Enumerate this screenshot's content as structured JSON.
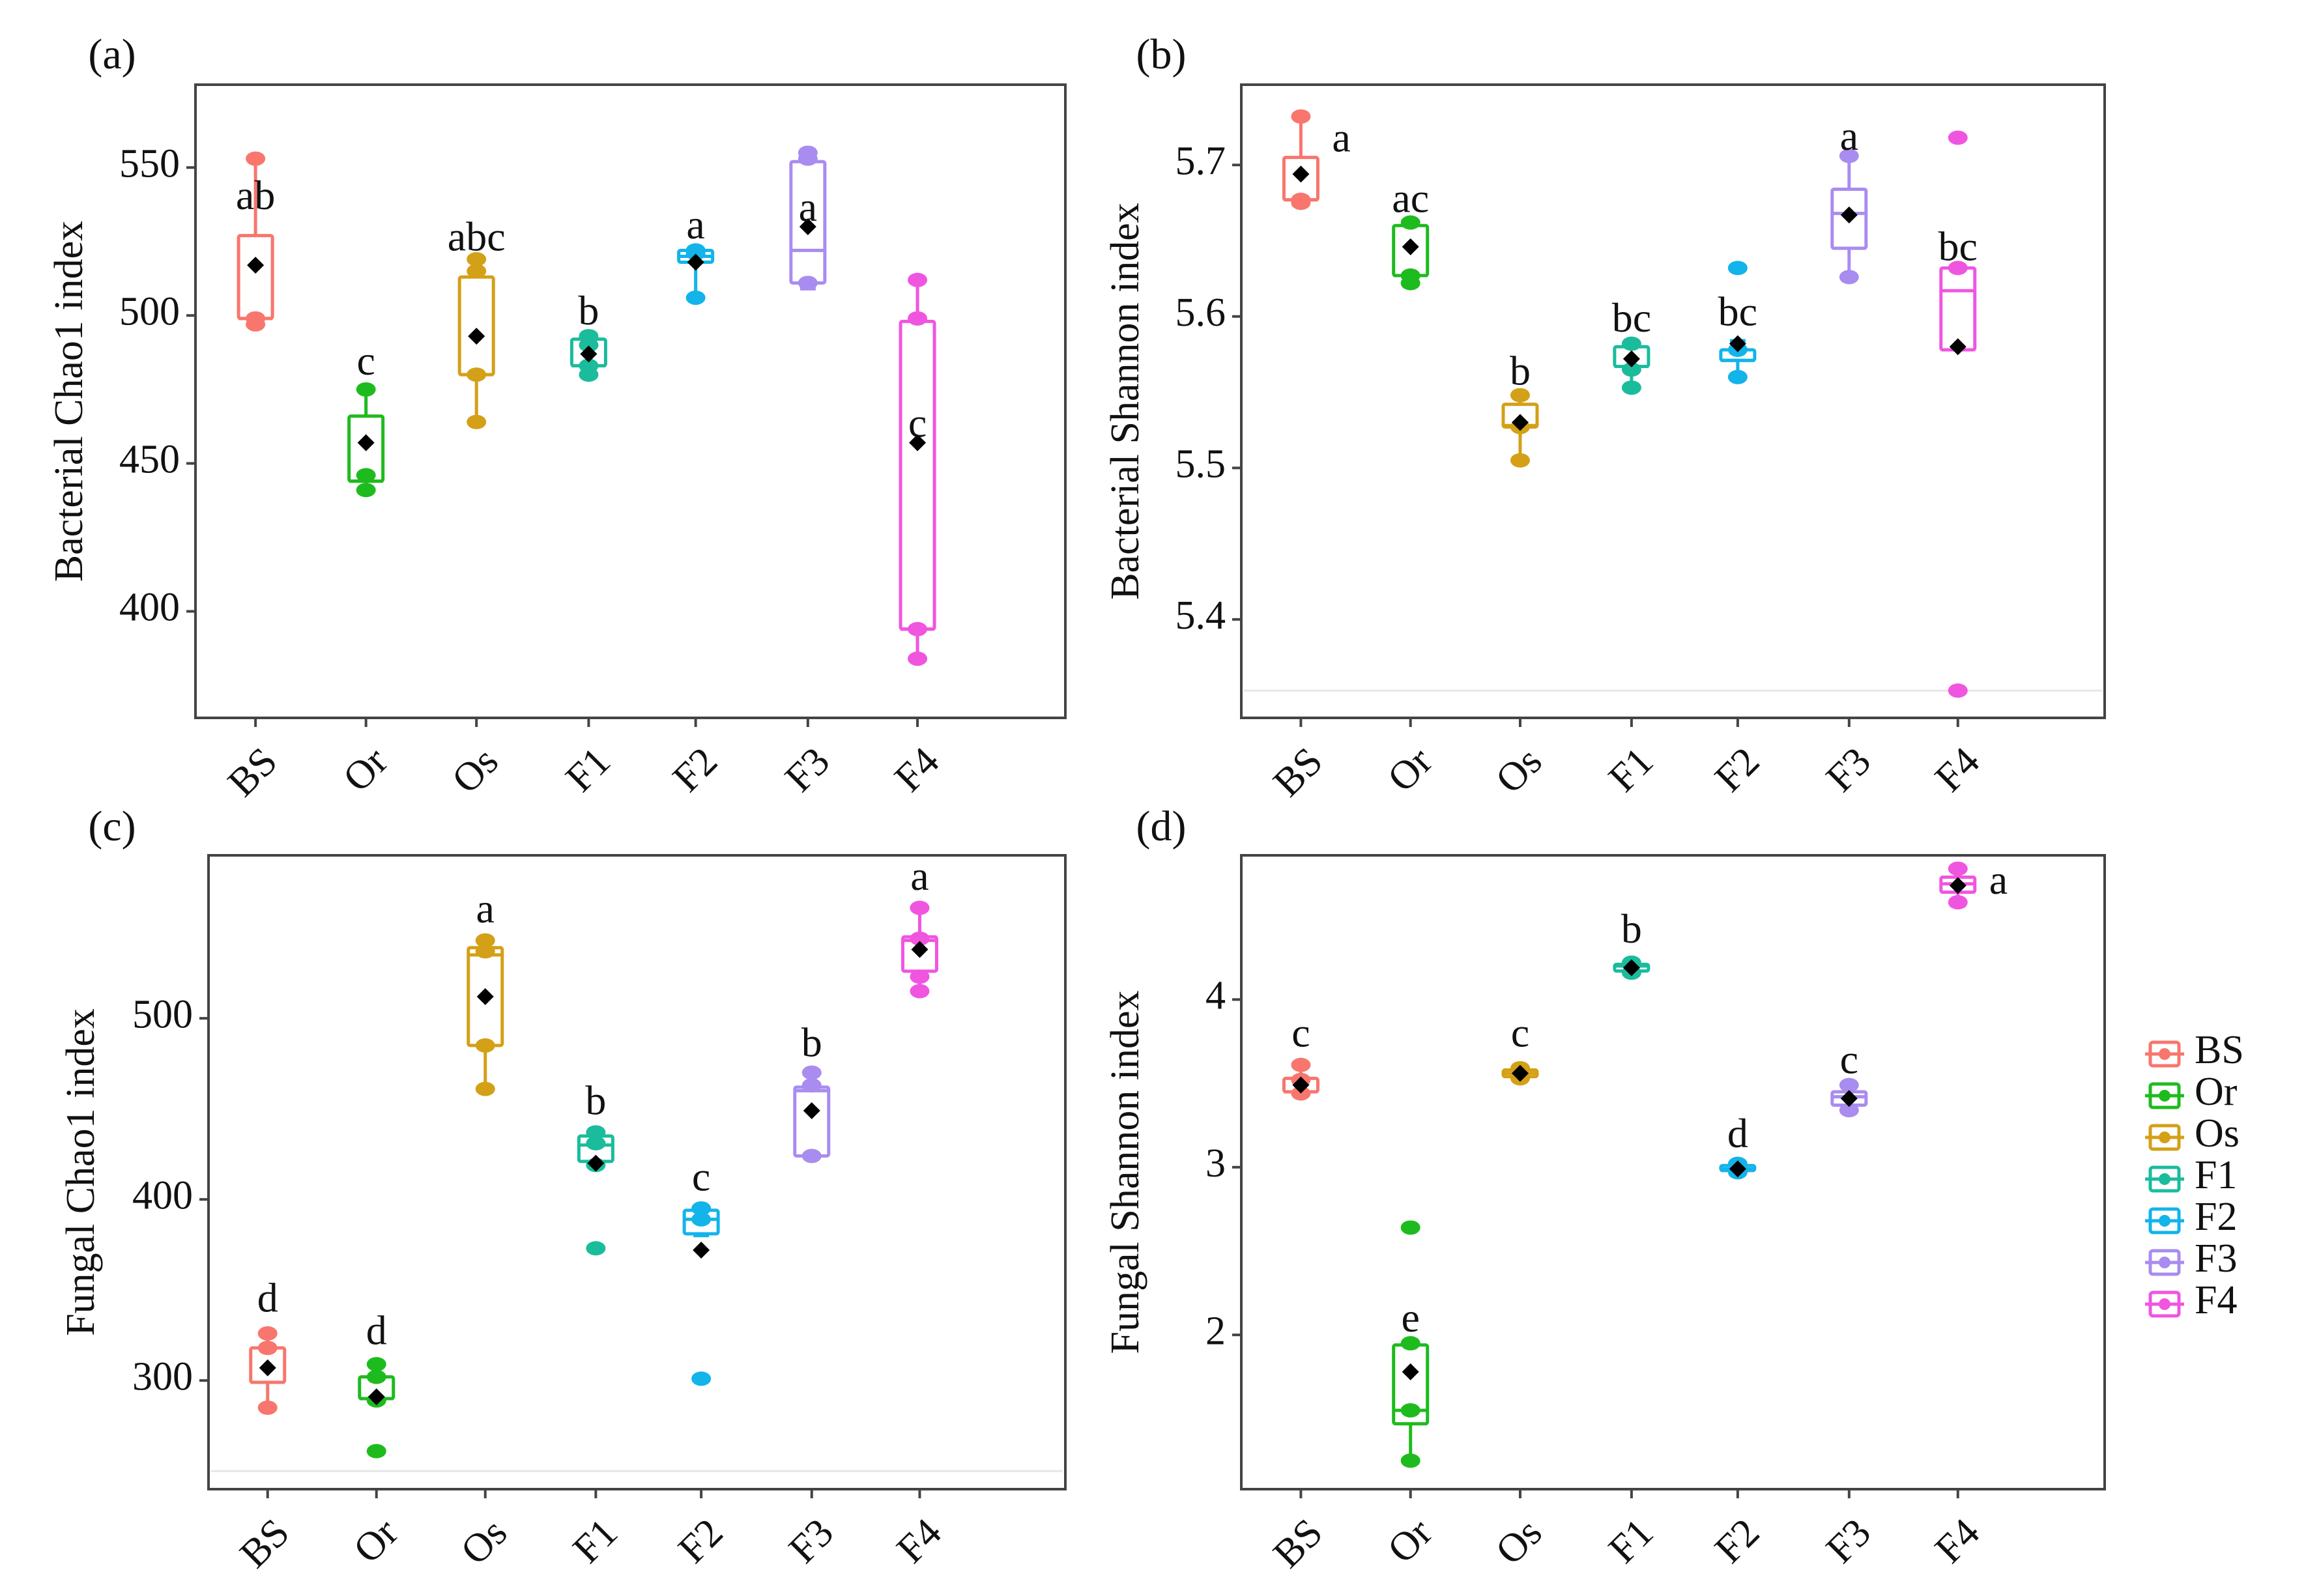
{
  "groups": [
    "BS",
    "Or",
    "Os",
    "F1",
    "F2",
    "F3",
    "F4"
  ],
  "colors": {
    "BS": "#F8766D",
    "Or": "#1EBB1E",
    "Os": "#D4A017",
    "F1": "#1ABC9C",
    "F2": "#12B4EA",
    "F3": "#A98CF0",
    "F4": "#F055E0"
  },
  "legend": {
    "entries": [
      "BS",
      "Or",
      "Os",
      "F1",
      "F2",
      "F3",
      "F4"
    ],
    "position": "right"
  },
  "chart_data": [
    {
      "panel": "(a)",
      "type": "box",
      "ylabel": "Bacterial Chao1 index",
      "ylim": [
        364,
        578
      ],
      "yticks": [
        400,
        450,
        500,
        550
      ],
      "hline": null,
      "groups": [
        {
          "name": "BS",
          "whisker_low": 497,
          "q1": 499,
          "median": 499,
          "q3": 527,
          "whisker_high": 554,
          "mean": 517,
          "points": [
            553,
            499,
            497
          ],
          "letter": "ab",
          "letter_value": 536,
          "letter_side": "center"
        },
        {
          "name": "Or",
          "whisker_low": 441,
          "q1": 444,
          "median": 444,
          "q3": 466,
          "whisker_high": 476,
          "mean": 457,
          "points": [
            475,
            446,
            441
          ],
          "letter": "c",
          "letter_value": 480,
          "letter_side": "center"
        },
        {
          "name": "Os",
          "whisker_low": 464,
          "q1": 480,
          "median": 480,
          "q3": 513,
          "whisker_high": 519,
          "mean": 493,
          "points": [
            519,
            515,
            480,
            464
          ],
          "letter": "abc",
          "letter_value": 522,
          "letter_side": "center"
        },
        {
          "name": "F1",
          "whisker_low": 480,
          "q1": 483,
          "median": 483,
          "q3": 492,
          "whisker_high": 494,
          "mean": 487,
          "points": [
            493,
            490,
            483,
            480
          ],
          "letter": "b",
          "letter_value": 497,
          "letter_side": "center"
        },
        {
          "name": "F2",
          "whisker_low": 506,
          "q1": 518,
          "median": 520,
          "q3": 522,
          "whisker_high": 523,
          "mean": 518,
          "points": [
            522,
            521,
            506
          ],
          "letter": "a",
          "letter_value": 526,
          "letter_side": "center"
        },
        {
          "name": "F3",
          "whisker_low": 509,
          "q1": 511,
          "median": 522,
          "q3": 552,
          "whisker_high": 556,
          "mean": 530,
          "points": [
            555,
            553,
            511
          ],
          "letter": "a",
          "letter_value": 532,
          "letter_side": "center"
        },
        {
          "name": "F4",
          "whisker_low": 384,
          "q1": 394,
          "median": 394,
          "q3": 498,
          "whisker_high": 512,
          "mean": 457,
          "points": [
            512,
            499,
            394,
            384
          ],
          "letter": "c",
          "letter_value": 459,
          "letter_side": "center"
        }
      ]
    },
    {
      "panel": "(b)",
      "type": "box",
      "ylabel": "Bacterial Shannon index",
      "ylim": [
        5.335,
        5.753
      ],
      "yticks": [
        5.4,
        5.5,
        5.6,
        5.7
      ],
      "ytick_labels": [
        "5.4",
        "5.5",
        "5.6",
        "5.7"
      ],
      "hline": 5.353,
      "groups": [
        {
          "name": "BS",
          "whisker_low": 5.675,
          "q1": 5.677,
          "median": 5.677,
          "q3": 5.705,
          "whisker_high": 5.733,
          "mean": 5.694,
          "points": [
            5.732,
            5.677,
            5.675
          ],
          "letter": "a",
          "letter_value": 5.709,
          "letter_side": "right"
        },
        {
          "name": "Or",
          "whisker_low": 5.622,
          "q1": 5.627,
          "median": 5.627,
          "q3": 5.66,
          "whisker_high": 5.663,
          "mean": 5.646,
          "points": [
            5.662,
            5.627,
            5.622
          ],
          "letter": "ac",
          "letter_value": 5.669,
          "letter_side": "center"
        },
        {
          "name": "Os",
          "whisker_low": 5.505,
          "q1": 5.527,
          "median": 5.528,
          "q3": 5.542,
          "whisker_high": 5.55,
          "mean": 5.53,
          "points": [
            5.548,
            5.527,
            5.505
          ],
          "letter": "b",
          "letter_value": 5.555,
          "letter_side": "center"
        },
        {
          "name": "F1",
          "whisker_low": 5.553,
          "q1": 5.567,
          "median": 5.567,
          "q3": 5.58,
          "whisker_high": 5.584,
          "mean": 5.572,
          "points": [
            5.582,
            5.565,
            5.553
          ],
          "letter": "bc",
          "letter_value": 5.59,
          "letter_side": "center"
        },
        {
          "name": "F2",
          "whisker_low": 5.56,
          "q1": 5.571,
          "median": 5.571,
          "q3": 5.578,
          "whisker_high": 5.584,
          "mean": 5.582,
          "points": [
            5.632,
            5.578,
            5.56
          ],
          "letter": "bc",
          "letter_value": 5.594,
          "letter_side": "center"
        },
        {
          "name": "F3",
          "whisker_low": 5.626,
          "q1": 5.645,
          "median": 5.668,
          "q3": 5.684,
          "whisker_high": 5.707,
          "mean": 5.667,
          "points": [
            5.706,
            5.626
          ],
          "letter": "a",
          "letter_value": 5.71,
          "letter_side": "center"
        },
        {
          "name": "F4",
          "whisker_low": 5.578,
          "q1": 5.578,
          "median": 5.617,
          "q3": 5.632,
          "whisker_high": 5.632,
          "mean": 5.58,
          "points": [
            5.718,
            5.632,
            5.353
          ],
          "letter": "bc",
          "letter_value": 5.637,
          "letter_side": "center"
        }
      ]
    },
    {
      "panel": "(c)",
      "type": "box",
      "ylabel": "Fungal Chao1 index",
      "ylim": [
        240,
        590
      ],
      "yticks": [
        300,
        400,
        500
      ],
      "hline": 250,
      "groups": [
        {
          "name": "BS",
          "whisker_low": 285,
          "q1": 299,
          "median": 299,
          "q3": 318,
          "whisker_high": 327,
          "mean": 307,
          "points": [
            326,
            318,
            285
          ],
          "letter": "d",
          "letter_value": 338,
          "letter_side": "center"
        },
        {
          "name": "Or",
          "whisker_low": 289,
          "q1": 290,
          "median": 290,
          "q3": 302,
          "whisker_high": 310,
          "mean": 291,
          "points": [
            309,
            302,
            289,
            261
          ],
          "letter": "d",
          "letter_value": 320,
          "letter_side": "center"
        },
        {
          "name": "Os",
          "whisker_low": 461,
          "q1": 485,
          "median": 535,
          "q3": 539,
          "whisker_high": 544,
          "mean": 512,
          "points": [
            543,
            537,
            485,
            461
          ],
          "letter": "a",
          "letter_value": 553,
          "letter_side": "center"
        },
        {
          "name": "F1",
          "whisker_low": 419,
          "q1": 421,
          "median": 430,
          "q3": 435,
          "whisker_high": 438,
          "mean": 420,
          "points": [
            437,
            431,
            419,
            373
          ],
          "letter": "b",
          "letter_value": 447,
          "letter_side": "center"
        },
        {
          "name": "F2",
          "whisker_low": 380,
          "q1": 381,
          "median": 389,
          "q3": 394,
          "whisker_high": 396,
          "mean": 372,
          "points": [
            395,
            389,
            301
          ],
          "letter": "c",
          "letter_value": 405,
          "letter_side": "center"
        },
        {
          "name": "F3",
          "whisker_low": 423,
          "q1": 424,
          "median": 460,
          "q3": 462,
          "whisker_high": 471,
          "mean": 449,
          "points": [
            470,
            463,
            424
          ],
          "letter": "b",
          "letter_value": 479,
          "letter_side": "center"
        },
        {
          "name": "F4",
          "whisker_low": 515,
          "q1": 526,
          "median": 543,
          "q3": 545,
          "whisker_high": 562,
          "mean": 538,
          "points": [
            561,
            544,
            523,
            515
          ],
          "letter": "a",
          "letter_value": 571,
          "letter_side": "center"
        }
      ]
    },
    {
      "panel": "(d)",
      "type": "box",
      "ylabel": "Fungal Shannon index",
      "ylim": [
        1.08,
        4.86
      ],
      "yticks": [
        2,
        3,
        4
      ],
      "hline": null,
      "groups": [
        {
          "name": "BS",
          "whisker_low": 3.43,
          "q1": 3.45,
          "median": 3.45,
          "q3": 3.53,
          "whisker_high": 3.62,
          "mean": 3.49,
          "points": [
            3.61,
            3.52,
            3.44
          ],
          "letter": "c",
          "letter_value": 3.72,
          "letter_side": "center"
        },
        {
          "name": "Or",
          "whisker_low": 1.24,
          "q1": 1.47,
          "median": 1.55,
          "q3": 1.94,
          "whisker_high": 1.96,
          "mean": 1.78,
          "points": [
            2.64,
            1.95,
            1.55,
            1.25
          ],
          "letter": "e",
          "letter_value": 2.02,
          "letter_side": "center"
        },
        {
          "name": "Os",
          "whisker_low": 3.53,
          "q1": 3.54,
          "median": 3.56,
          "q3": 3.58,
          "whisker_high": 3.6,
          "mean": 3.56,
          "points": [
            3.59,
            3.53
          ],
          "letter": "c",
          "letter_value": 3.72,
          "letter_side": "center"
        },
        {
          "name": "F1",
          "whisker_low": 4.15,
          "q1": 4.17,
          "median": 4.2,
          "q3": 4.21,
          "whisker_high": 4.23,
          "mean": 4.19,
          "points": [
            4.22,
            4.16
          ],
          "letter": "b",
          "letter_value": 4.34,
          "letter_side": "center"
        },
        {
          "name": "F2",
          "whisker_low": 2.96,
          "q1": 2.98,
          "median": 2.99,
          "q3": 3.01,
          "whisker_high": 3.02,
          "mean": 2.99,
          "points": [
            3.02,
            2.97
          ],
          "letter": "d",
          "letter_value": 3.12,
          "letter_side": "center"
        },
        {
          "name": "F3",
          "whisker_low": 3.33,
          "q1": 3.37,
          "median": 3.42,
          "q3": 3.45,
          "whisker_high": 3.5,
          "mean": 3.41,
          "points": [
            3.49,
            3.34
          ],
          "letter": "c",
          "letter_value": 3.56,
          "letter_side": "center"
        },
        {
          "name": "F4",
          "whisker_low": 4.56,
          "q1": 4.64,
          "median": 4.69,
          "q3": 4.73,
          "whisker_high": 4.79,
          "mean": 4.68,
          "points": [
            4.78,
            4.58
          ],
          "letter": "a",
          "letter_value": 4.63,
          "letter_side": "right"
        }
      ]
    }
  ]
}
